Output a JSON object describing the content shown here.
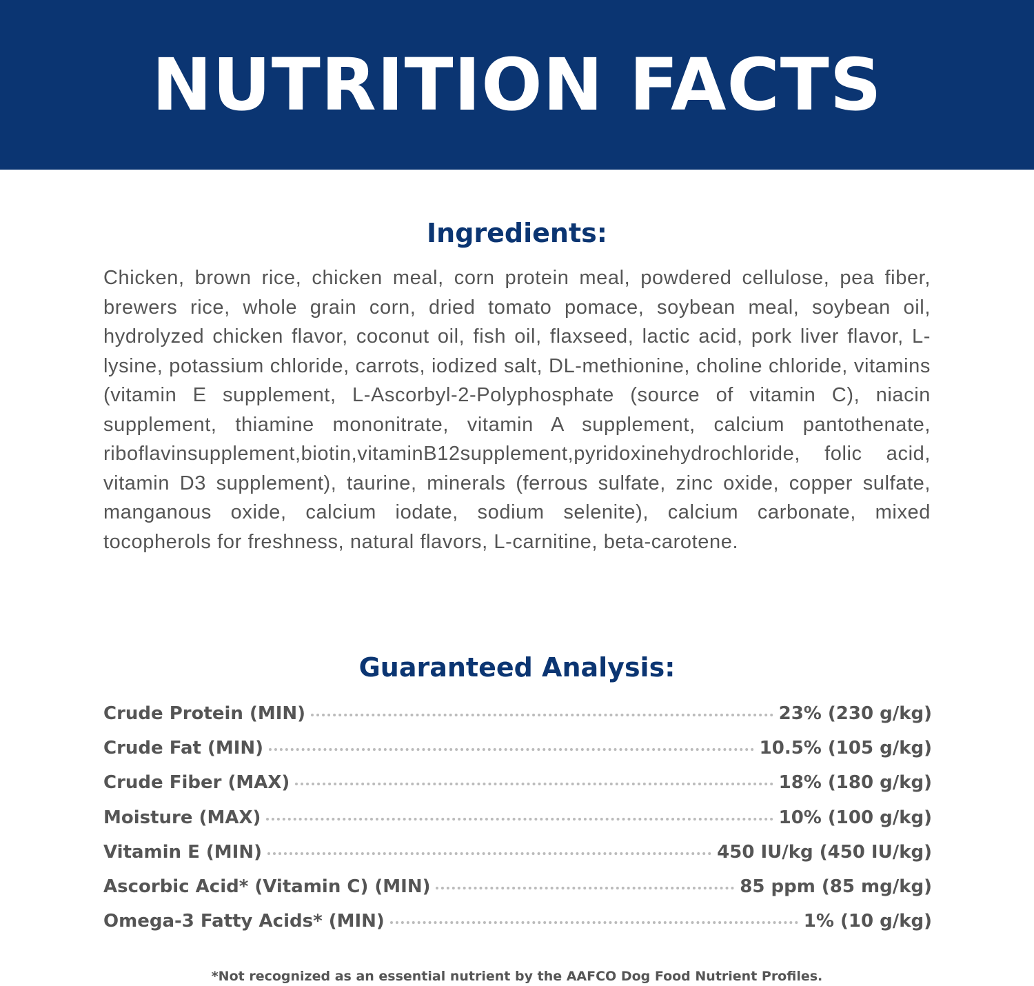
{
  "header": {
    "title": "NUTRITION FACTS",
    "background_color": "#0b3572"
  },
  "ingredients": {
    "heading": "Ingredients:",
    "text": "Chicken, brown rice, chicken meal, corn protein meal, powdered cellulose, pea fiber, brewers rice, whole grain corn, dried tomato pomace, soybean meal, soybean oil, hydrolyzed chicken flavor, coconut oil, fish oil, flaxseed, lactic acid, pork liver flavor, L-lysine, potassium chloride, carrots, iodized salt, DL-methionine, choline chloride, vitamins (vitamin E supplement, L-Ascorbyl-2-Polyphosphate (source of vitamin C), niacin supplement, thiamine mononitrate, vitamin A supplement, calcium pantothenate, riboflavinsupplement,biotin,vitaminB12supplement,pyridoxinehydrochloride, folic acid, vitamin D3 supplement), taurine, minerals (ferrous sulfate, zinc oxide, copper sulfate, manganous oxide, calcium iodate, sodium selenite), calcium carbonate, mixed tocopherols for freshness, natural flavors, L-carnitine, beta-carotene."
  },
  "analysis": {
    "heading": "Guaranteed Analysis:",
    "rows": [
      {
        "label": "Crude Protein (MIN)",
        "value": "23% (230 g/kg)"
      },
      {
        "label": "Crude Fat (MIN)",
        "value": "10.5% (105 g/kg)"
      },
      {
        "label": "Crude Fiber (MAX)",
        "value": "18% (180 g/kg)"
      },
      {
        "label": "Moisture (MAX)",
        "value": "10% (100 g/kg)"
      },
      {
        "label": "Vitamin E (MIN)",
        "value": "450 IU/kg (450 IU/kg)"
      },
      {
        "label": "Ascorbic Acid* (Vitamin C) (MIN)",
        "value": "85 ppm (85 mg/kg)"
      },
      {
        "label": "Omega-3 Fatty Acids* (MIN)",
        "value": "1% (10 g/kg)"
      }
    ]
  },
  "footnote": "*Not recognized as an essential nutrient by the AAFCO Dog Food Nutrient Profiles."
}
